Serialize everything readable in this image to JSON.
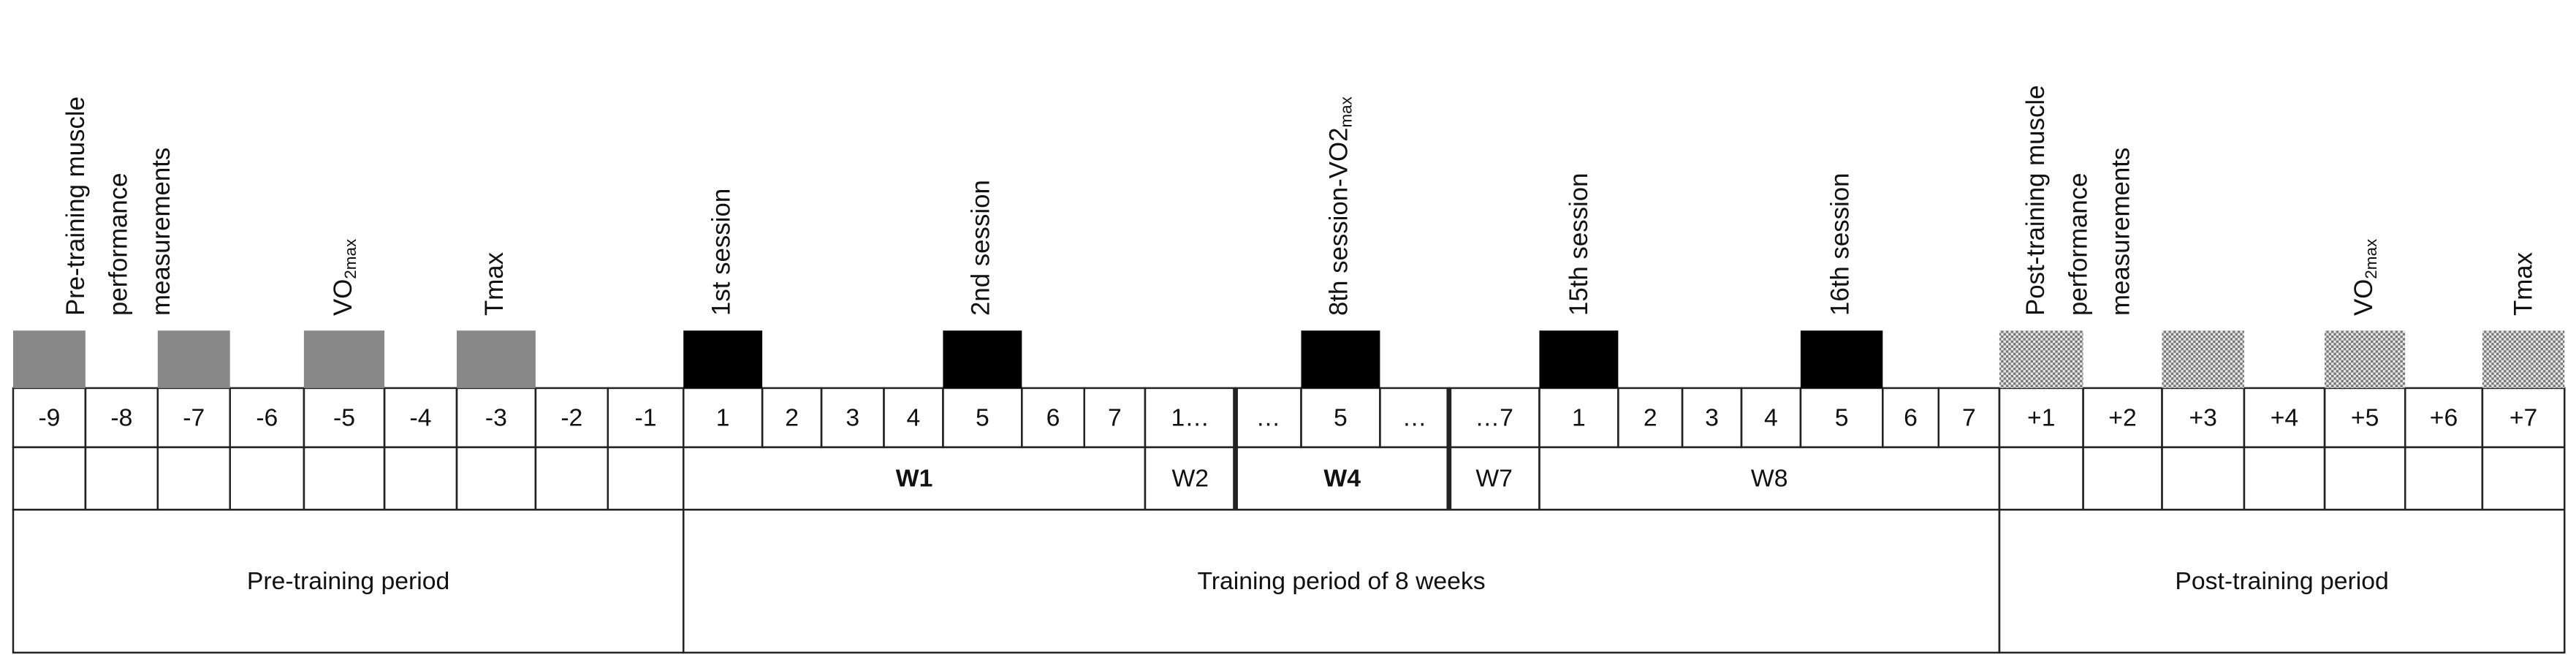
{
  "annotations": [
    {
      "lines": [
        "Pre-training muscle",
        "performance",
        "measurements"
      ]
    },
    {
      "base": "VO",
      "sub": "2max"
    },
    {
      "lines": [
        "Tmax"
      ]
    },
    {
      "lines": [
        "1st session"
      ]
    },
    {
      "lines": [
        "2nd session"
      ]
    },
    {
      "base": "8th session-VO2",
      "sub": "max"
    },
    {
      "lines": [
        "15th session"
      ]
    },
    {
      "lines": [
        "16th session"
      ]
    },
    {
      "lines": [
        "Post-training muscle",
        "performance",
        "measurements"
      ]
    },
    {
      "base": "VO",
      "sub": "2max"
    },
    {
      "lines": [
        "Tmax"
      ]
    }
  ],
  "days": [
    "-9",
    "-8",
    "-7",
    "-6",
    "-5",
    "-4",
    "-3",
    "-2",
    "-1",
    "1",
    "2",
    "3",
    "4",
    "5",
    "6",
    "7",
    "1…",
    "…",
    "5",
    "…",
    "…7",
    "1",
    "2",
    "3",
    "4",
    "5",
    "6",
    "7",
    "+1",
    "+2",
    "+3",
    "+4",
    "+5",
    "+6",
    "+7"
  ],
  "weeks": [
    "W1",
    "W2",
    "W4",
    "W7",
    "W8"
  ],
  "periods": [
    "Pre-training period",
    "Training period of 8 weeks",
    "Post-training period"
  ]
}
